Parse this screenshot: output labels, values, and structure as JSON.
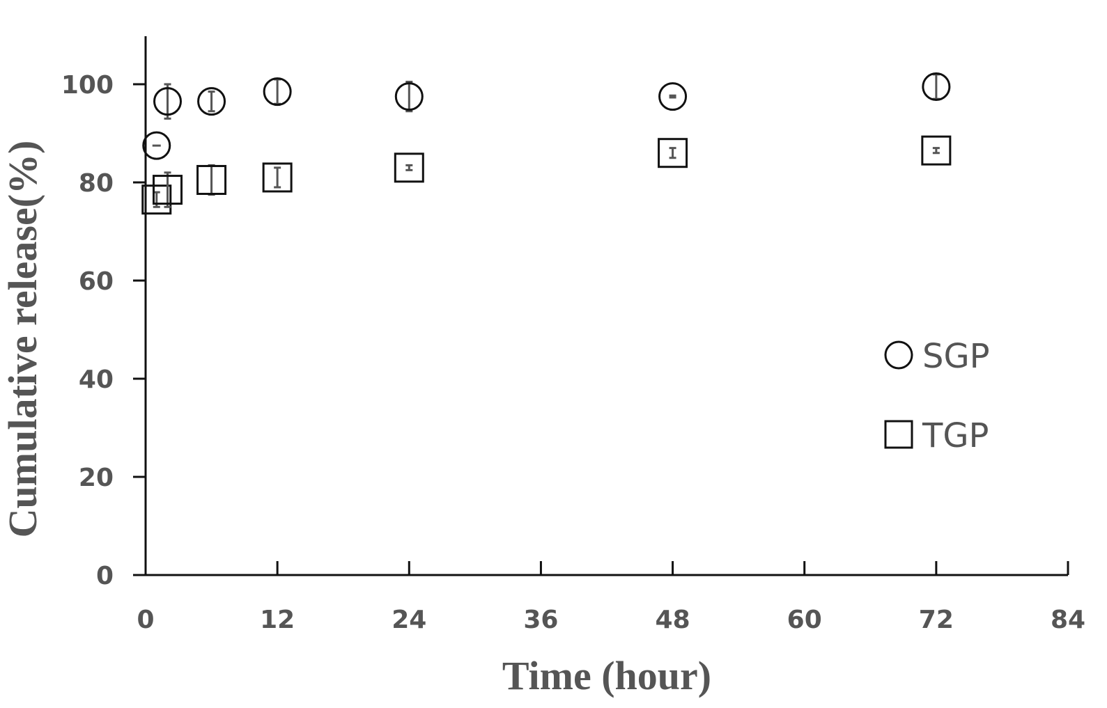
{
  "chart_data": {
    "type": "scatter",
    "title": "",
    "xlabel": "Time (hour)",
    "ylabel": "Cumulative release(%)",
    "xlim": [
      0,
      84
    ],
    "ylim": [
      0,
      110
    ],
    "xticks": [
      0,
      12,
      24,
      36,
      48,
      60,
      72,
      84
    ],
    "yticks": [
      0,
      20,
      40,
      60,
      80,
      100
    ],
    "grid": false,
    "legend_position": "right",
    "series": [
      {
        "name": "SGP",
        "marker": "circle",
        "points": [
          {
            "x": 1,
            "y": 87.5,
            "err": 0
          },
          {
            "x": 2,
            "y": 96.5,
            "err": 3.5
          },
          {
            "x": 6,
            "y": 96.5,
            "err": 2
          },
          {
            "x": 12,
            "y": 98.5,
            "err": 2.5
          },
          {
            "x": 24,
            "y": 97.5,
            "err": 3
          },
          {
            "x": 48,
            "y": 97.5,
            "err": 0.2
          },
          {
            "x": 72,
            "y": 99.5,
            "err": 2.5
          }
        ]
      },
      {
        "name": "TGP",
        "marker": "square",
        "points": [
          {
            "x": 1,
            "y": 76.5,
            "err": 1.5
          },
          {
            "x": 2,
            "y": 78.5,
            "err": 3.5
          },
          {
            "x": 6,
            "y": 80.5,
            "err": 3
          },
          {
            "x": 12,
            "y": 81,
            "err": 2
          },
          {
            "x": 24,
            "y": 83,
            "err": 0.5
          },
          {
            "x": 48,
            "y": 86,
            "err": 1
          },
          {
            "x": 72,
            "y": 86.5,
            "err": 0.5
          }
        ]
      }
    ]
  }
}
